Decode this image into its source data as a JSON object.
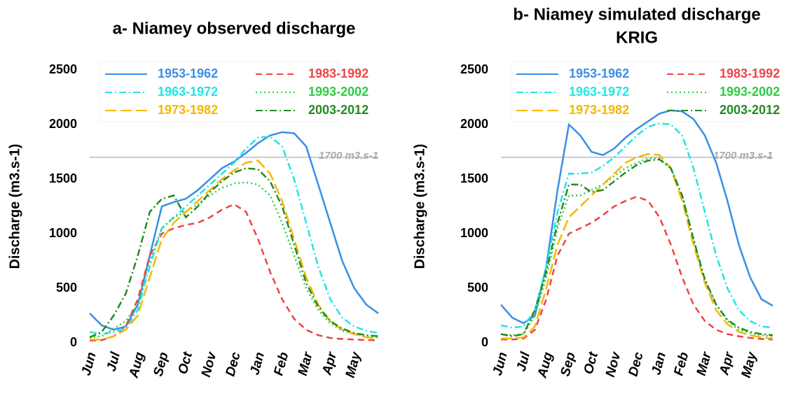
{
  "chart_data": [
    {
      "type": "line",
      "title": [
        "a- Niamey observed discharge"
      ],
      "y_label": "Discharge (m3.s-1)",
      "categories": [
        "Jun",
        null,
        "Jul",
        null,
        "Aug",
        null,
        "Sep",
        null,
        "Oct",
        null,
        "Nov",
        null,
        "Dec",
        null,
        "Jan",
        null,
        "Feb",
        null,
        "Mar",
        null,
        "Apr",
        null,
        "May",
        null,
        null
      ],
      "ylim": [
        0,
        2500
      ],
      "yticks": [
        0,
        500,
        1000,
        1500,
        2000,
        2500
      ],
      "hline": {
        "value": 1700,
        "label": "1700 m3.s-1"
      },
      "series": [
        {
          "name": "1953-1962",
          "color": "#3a8ee6",
          "dash": "solid",
          "values": [
            270,
            160,
            120,
            150,
            350,
            800,
            1250,
            1290,
            1320,
            1400,
            1500,
            1600,
            1660,
            1740,
            1830,
            1900,
            1930,
            1920,
            1800,
            1450,
            1100,
            750,
            500,
            350,
            270
          ]
        },
        {
          "name": "1983-1992",
          "color": "#ee4444",
          "dash": "dashed",
          "values": [
            20,
            25,
            60,
            150,
            400,
            800,
            1000,
            1050,
            1080,
            1100,
            1150,
            1220,
            1270,
            1200,
            950,
            650,
            400,
            220,
            120,
            70,
            45,
            35,
            30,
            25,
            25
          ]
        },
        {
          "name": "1963-1972",
          "color": "#22e5e5",
          "dash": "dashdot",
          "values": [
            100,
            80,
            100,
            130,
            300,
            700,
            1050,
            1150,
            1250,
            1350,
            1450,
            1550,
            1650,
            1780,
            1880,
            1890,
            1800,
            1500,
            1100,
            700,
            400,
            230,
            150,
            110,
            90
          ]
        },
        {
          "name": "1993-2002",
          "color": "#2ecc40",
          "dash": "dotted",
          "values": [
            50,
            60,
            130,
            200,
            350,
            750,
            1050,
            1150,
            1200,
            1270,
            1350,
            1420,
            1460,
            1470,
            1450,
            1350,
            1100,
            800,
            500,
            300,
            180,
            110,
            80,
            60,
            50
          ]
        },
        {
          "name": "1973-1982",
          "color": "#f5b800",
          "dash": "longdash",
          "values": [
            30,
            30,
            60,
            120,
            250,
            600,
            950,
            1100,
            1200,
            1300,
            1400,
            1500,
            1580,
            1650,
            1670,
            1550,
            1300,
            950,
            600,
            350,
            200,
            120,
            80,
            50,
            40
          ]
        },
        {
          "name": "2003-2012",
          "color": "#228b22",
          "dash": "dashdot",
          "values": [
            50,
            100,
            250,
            450,
            800,
            1200,
            1320,
            1350,
            1150,
            1250,
            1380,
            1480,
            1560,
            1600,
            1590,
            1480,
            1250,
            900,
            550,
            330,
            200,
            130,
            90,
            70,
            60
          ]
        }
      ]
    },
    {
      "type": "line",
      "title": [
        "b- Niamey simulated discharge",
        "KRIG"
      ],
      "y_label": "Discharge (m3.s-1)",
      "categories": [
        "Jun",
        null,
        "Jul",
        null,
        "Aug",
        null,
        "Sep",
        null,
        "Oct",
        null,
        "Nov",
        null,
        "Dec",
        null,
        "Jan",
        null,
        "Feb",
        null,
        "Mar",
        null,
        "Apr",
        null,
        "May",
        null,
        null
      ],
      "ylim": [
        0,
        2500
      ],
      "yticks": [
        0,
        500,
        1000,
        1500,
        2000,
        2500
      ],
      "hline": {
        "value": 1700,
        "label": "1700 m3.s-1"
      },
      "series": [
        {
          "name": "1953-1962",
          "color": "#3a8ee6",
          "dash": "solid",
          "values": [
            350,
            230,
            180,
            250,
            700,
            1400,
            2000,
            1900,
            1750,
            1720,
            1780,
            1880,
            1960,
            2030,
            2100,
            2130,
            2120,
            2050,
            1900,
            1650,
            1300,
            900,
            600,
            400,
            340
          ]
        },
        {
          "name": "1983-1992",
          "color": "#ee4444",
          "dash": "dashed",
          "values": [
            30,
            30,
            40,
            120,
            400,
            800,
            1000,
            1050,
            1100,
            1170,
            1250,
            1300,
            1340,
            1300,
            1150,
            900,
            600,
            350,
            200,
            120,
            80,
            60,
            45,
            35,
            30
          ]
        },
        {
          "name": "1963-1972",
          "color": "#22e5e5",
          "dash": "dashdot",
          "values": [
            160,
            140,
            150,
            300,
            700,
            1200,
            1550,
            1550,
            1560,
            1620,
            1700,
            1800,
            1900,
            1980,
            2010,
            2000,
            1900,
            1600,
            1200,
            800,
            500,
            300,
            200,
            150,
            140
          ]
        },
        {
          "name": "1993-2002",
          "color": "#2ecc40",
          "dash": "dotted",
          "values": [
            80,
            70,
            80,
            250,
            600,
            1050,
            1350,
            1350,
            1400,
            1450,
            1530,
            1600,
            1650,
            1690,
            1690,
            1600,
            1350,
            950,
            580,
            350,
            200,
            120,
            90,
            70,
            60
          ]
        },
        {
          "name": "1973-1982",
          "color": "#f5b800",
          "dash": "longdash",
          "values": [
            40,
            40,
            50,
            150,
            500,
            900,
            1150,
            1250,
            1350,
            1450,
            1550,
            1650,
            1700,
            1730,
            1720,
            1600,
            1300,
            900,
            550,
            300,
            170,
            100,
            70,
            50,
            40
          ]
        },
        {
          "name": "2003-2012",
          "color": "#228b22",
          "dash": "dashdot",
          "values": [
            80,
            60,
            80,
            300,
            650,
            1100,
            1450,
            1450,
            1380,
            1400,
            1480,
            1560,
            1630,
            1670,
            1680,
            1600,
            1350,
            950,
            580,
            350,
            210,
            140,
            100,
            80,
            70
          ]
        }
      ]
    }
  ]
}
